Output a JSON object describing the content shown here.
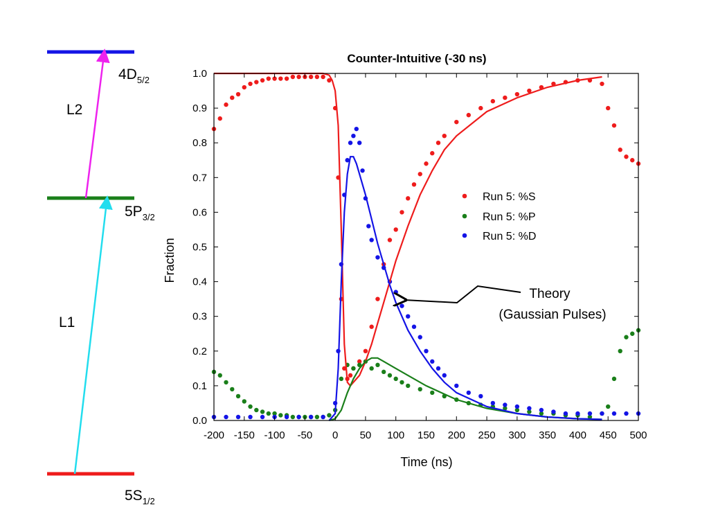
{
  "colors": {
    "S": "#ee1c1c",
    "P": "#1a7f1a",
    "D": "#1414e6",
    "L1": "#22ddee",
    "L2": "#ee22ee",
    "level_5S": "#ee1c1c",
    "level_5P": "#1a7f1a",
    "level_4D": "#1414e6"
  },
  "diagram": {
    "levels": [
      {
        "id": "4D",
        "main": "4D",
        "sub": "5/2"
      },
      {
        "id": "5P",
        "main": "5P",
        "sub": "3/2"
      },
      {
        "id": "5S",
        "main": "5S",
        "sub": "1/2"
      }
    ],
    "beams": [
      {
        "id": "L2",
        "label": "L2"
      },
      {
        "id": "L1",
        "label": "L1"
      }
    ]
  },
  "chart_data": {
    "type": "scatter",
    "title": "Counter-Intuitive (-30 ns)",
    "xlabel": "Time (ns)",
    "ylabel": "Fraction",
    "xlim": [
      -200,
      500
    ],
    "ylim": [
      0,
      1.0
    ],
    "xticks": [
      -200,
      -150,
      -100,
      -50,
      0,
      50,
      100,
      150,
      200,
      250,
      300,
      350,
      400,
      450,
      500
    ],
    "yticks": [
      0.0,
      0.1,
      0.2,
      0.3,
      0.4,
      0.5,
      0.6,
      0.7,
      0.8,
      0.9,
      1.0
    ],
    "ytick_labels": [
      "0.0",
      "0.1",
      "0.2",
      "0.3",
      "0.4",
      "0.5",
      "0.6",
      "0.7",
      "0.8",
      "0.9",
      "1.0"
    ],
    "grid": false,
    "legend_position": "right-middle",
    "series": [
      {
        "name": "Run 5: %S",
        "color_key": "S",
        "points": [
          [
            -200,
            0.84
          ],
          [
            -190,
            0.87
          ],
          [
            -180,
            0.91
          ],
          [
            -170,
            0.93
          ],
          [
            -160,
            0.94
          ],
          [
            -150,
            0.96
          ],
          [
            -140,
            0.97
          ],
          [
            -130,
            0.975
          ],
          [
            -120,
            0.98
          ],
          [
            -110,
            0.985
          ],
          [
            -100,
            0.985
          ],
          [
            -90,
            0.985
          ],
          [
            -80,
            0.985
          ],
          [
            -70,
            0.99
          ],
          [
            -60,
            0.99
          ],
          [
            -50,
            0.99
          ],
          [
            -40,
            0.99
          ],
          [
            -30,
            0.99
          ],
          [
            -20,
            0.99
          ],
          [
            -10,
            0.98
          ],
          [
            0,
            0.9
          ],
          [
            5,
            0.7
          ],
          [
            10,
            0.35
          ],
          [
            15,
            0.15
          ],
          [
            20,
            0.12
          ],
          [
            25,
            0.13
          ],
          [
            30,
            0.15
          ],
          [
            40,
            0.17
          ],
          [
            50,
            0.2
          ],
          [
            60,
            0.27
          ],
          [
            70,
            0.35
          ],
          [
            80,
            0.45
          ],
          [
            90,
            0.52
          ],
          [
            100,
            0.55
          ],
          [
            110,
            0.6
          ],
          [
            120,
            0.64
          ],
          [
            130,
            0.68
          ],
          [
            140,
            0.71
          ],
          [
            150,
            0.74
          ],
          [
            160,
            0.77
          ],
          [
            170,
            0.8
          ],
          [
            180,
            0.82
          ],
          [
            200,
            0.86
          ],
          [
            220,
            0.88
          ],
          [
            240,
            0.9
          ],
          [
            260,
            0.92
          ],
          [
            280,
            0.93
          ],
          [
            300,
            0.94
          ],
          [
            320,
            0.95
          ],
          [
            340,
            0.96
          ],
          [
            360,
            0.97
          ],
          [
            380,
            0.975
          ],
          [
            400,
            0.98
          ],
          [
            420,
            0.98
          ],
          [
            440,
            0.97
          ],
          [
            450,
            0.9
          ],
          [
            460,
            0.85
          ],
          [
            470,
            0.78
          ],
          [
            480,
            0.76
          ],
          [
            490,
            0.75
          ],
          [
            500,
            0.74
          ]
        ]
      },
      {
        "name": "Run 5: %P",
        "color_key": "P",
        "points": [
          [
            -200,
            0.14
          ],
          [
            -190,
            0.13
          ],
          [
            -180,
            0.11
          ],
          [
            -170,
            0.09
          ],
          [
            -160,
            0.07
          ],
          [
            -150,
            0.055
          ],
          [
            -140,
            0.04
          ],
          [
            -130,
            0.03
          ],
          [
            -120,
            0.025
          ],
          [
            -110,
            0.02
          ],
          [
            -100,
            0.02
          ],
          [
            -90,
            0.015
          ],
          [
            -80,
            0.015
          ],
          [
            -70,
            0.01
          ],
          [
            -60,
            0.01
          ],
          [
            -50,
            0.01
          ],
          [
            -40,
            0.01
          ],
          [
            -30,
            0.01
          ],
          [
            -20,
            0.01
          ],
          [
            -10,
            0.015
          ],
          [
            0,
            0.03
          ],
          [
            10,
            0.12
          ],
          [
            20,
            0.16
          ],
          [
            30,
            0.15
          ],
          [
            40,
            0.16
          ],
          [
            50,
            0.17
          ],
          [
            60,
            0.15
          ],
          [
            70,
            0.16
          ],
          [
            80,
            0.14
          ],
          [
            90,
            0.13
          ],
          [
            100,
            0.12
          ],
          [
            110,
            0.11
          ],
          [
            120,
            0.1
          ],
          [
            140,
            0.09
          ],
          [
            160,
            0.08
          ],
          [
            180,
            0.07
          ],
          [
            200,
            0.06
          ],
          [
            220,
            0.05
          ],
          [
            240,
            0.045
          ],
          [
            260,
            0.04
          ],
          [
            280,
            0.035
          ],
          [
            300,
            0.03
          ],
          [
            320,
            0.025
          ],
          [
            340,
            0.02
          ],
          [
            360,
            0.02
          ],
          [
            380,
            0.015
          ],
          [
            400,
            0.015
          ],
          [
            420,
            0.01
          ],
          [
            440,
            0.02
          ],
          [
            450,
            0.04
          ],
          [
            460,
            0.12
          ],
          [
            470,
            0.2
          ],
          [
            480,
            0.24
          ],
          [
            490,
            0.25
          ],
          [
            500,
            0.26
          ]
        ]
      },
      {
        "name": "Run 5: %D",
        "color_key": "D",
        "points": [
          [
            -200,
            0.01
          ],
          [
            -180,
            0.01
          ],
          [
            -160,
            0.01
          ],
          [
            -140,
            0.01
          ],
          [
            -120,
            0.01
          ],
          [
            -100,
            0.01
          ],
          [
            -80,
            0.01
          ],
          [
            -60,
            0.01
          ],
          [
            -40,
            0.01
          ],
          [
            -20,
            0.01
          ],
          [
            0,
            0.05
          ],
          [
            5,
            0.2
          ],
          [
            10,
            0.45
          ],
          [
            15,
            0.65
          ],
          [
            20,
            0.75
          ],
          [
            25,
            0.8
          ],
          [
            30,
            0.82
          ],
          [
            35,
            0.84
          ],
          [
            40,
            0.8
          ],
          [
            45,
            0.72
          ],
          [
            50,
            0.64
          ],
          [
            55,
            0.56
          ],
          [
            60,
            0.52
          ],
          [
            70,
            0.47
          ],
          [
            80,
            0.44
          ],
          [
            90,
            0.4
          ],
          [
            100,
            0.37
          ],
          [
            110,
            0.33
          ],
          [
            120,
            0.3
          ],
          [
            130,
            0.27
          ],
          [
            140,
            0.24
          ],
          [
            150,
            0.2
          ],
          [
            160,
            0.17
          ],
          [
            170,
            0.15
          ],
          [
            180,
            0.13
          ],
          [
            200,
            0.1
          ],
          [
            220,
            0.08
          ],
          [
            240,
            0.07
          ],
          [
            260,
            0.05
          ],
          [
            280,
            0.045
          ],
          [
            300,
            0.04
          ],
          [
            320,
            0.035
          ],
          [
            340,
            0.03
          ],
          [
            360,
            0.025
          ],
          [
            380,
            0.02
          ],
          [
            400,
            0.02
          ],
          [
            420,
            0.02
          ],
          [
            440,
            0.02
          ],
          [
            460,
            0.02
          ],
          [
            480,
            0.02
          ],
          [
            500,
            0.02
          ]
        ]
      }
    ],
    "theory_curves": [
      {
        "color_key": "S",
        "points": [
          [
            -200,
            1.0
          ],
          [
            -20,
            1.0
          ],
          [
            -10,
            0.995
          ],
          [
            -5,
            0.98
          ],
          [
            0,
            0.95
          ],
          [
            5,
            0.85
          ],
          [
            10,
            0.55
          ],
          [
            15,
            0.22
          ],
          [
            20,
            0.11
          ],
          [
            25,
            0.1
          ],
          [
            30,
            0.11
          ],
          [
            40,
            0.13
          ],
          [
            50,
            0.17
          ],
          [
            60,
            0.22
          ],
          [
            70,
            0.28
          ],
          [
            80,
            0.34
          ],
          [
            90,
            0.4
          ],
          [
            100,
            0.46
          ],
          [
            120,
            0.56
          ],
          [
            140,
            0.65
          ],
          [
            160,
            0.72
          ],
          [
            180,
            0.78
          ],
          [
            200,
            0.82
          ],
          [
            250,
            0.89
          ],
          [
            300,
            0.93
          ],
          [
            350,
            0.96
          ],
          [
            400,
            0.98
          ],
          [
            440,
            0.99
          ]
        ]
      },
      {
        "color_key": "P",
        "points": [
          [
            -10,
            0.0
          ],
          [
            0,
            0.005
          ],
          [
            10,
            0.03
          ],
          [
            20,
            0.08
          ],
          [
            30,
            0.12
          ],
          [
            40,
            0.15
          ],
          [
            50,
            0.17
          ],
          [
            60,
            0.18
          ],
          [
            70,
            0.18
          ],
          [
            80,
            0.17
          ],
          [
            100,
            0.15
          ],
          [
            120,
            0.13
          ],
          [
            150,
            0.1
          ],
          [
            200,
            0.06
          ],
          [
            250,
            0.035
          ],
          [
            300,
            0.02
          ],
          [
            350,
            0.01
          ],
          [
            400,
            0.005
          ],
          [
            440,
            0.003
          ]
        ]
      },
      {
        "color_key": "D",
        "points": [
          [
            -10,
            0.0
          ],
          [
            0,
            0.02
          ],
          [
            5,
            0.15
          ],
          [
            10,
            0.4
          ],
          [
            15,
            0.6
          ],
          [
            20,
            0.71
          ],
          [
            25,
            0.76
          ],
          [
            30,
            0.76
          ],
          [
            35,
            0.74
          ],
          [
            40,
            0.71
          ],
          [
            50,
            0.65
          ],
          [
            60,
            0.58
          ],
          [
            70,
            0.51
          ],
          [
            80,
            0.45
          ],
          [
            90,
            0.39
          ],
          [
            100,
            0.34
          ],
          [
            120,
            0.26
          ],
          [
            140,
            0.2
          ],
          [
            160,
            0.15
          ],
          [
            180,
            0.11
          ],
          [
            200,
            0.08
          ],
          [
            250,
            0.04
          ],
          [
            300,
            0.02
          ],
          [
            350,
            0.01
          ],
          [
            400,
            0.005
          ],
          [
            440,
            0.003
          ]
        ]
      }
    ],
    "annotation": {
      "line1": "Theory",
      "line2": "(Gaussian Pulses)"
    }
  }
}
